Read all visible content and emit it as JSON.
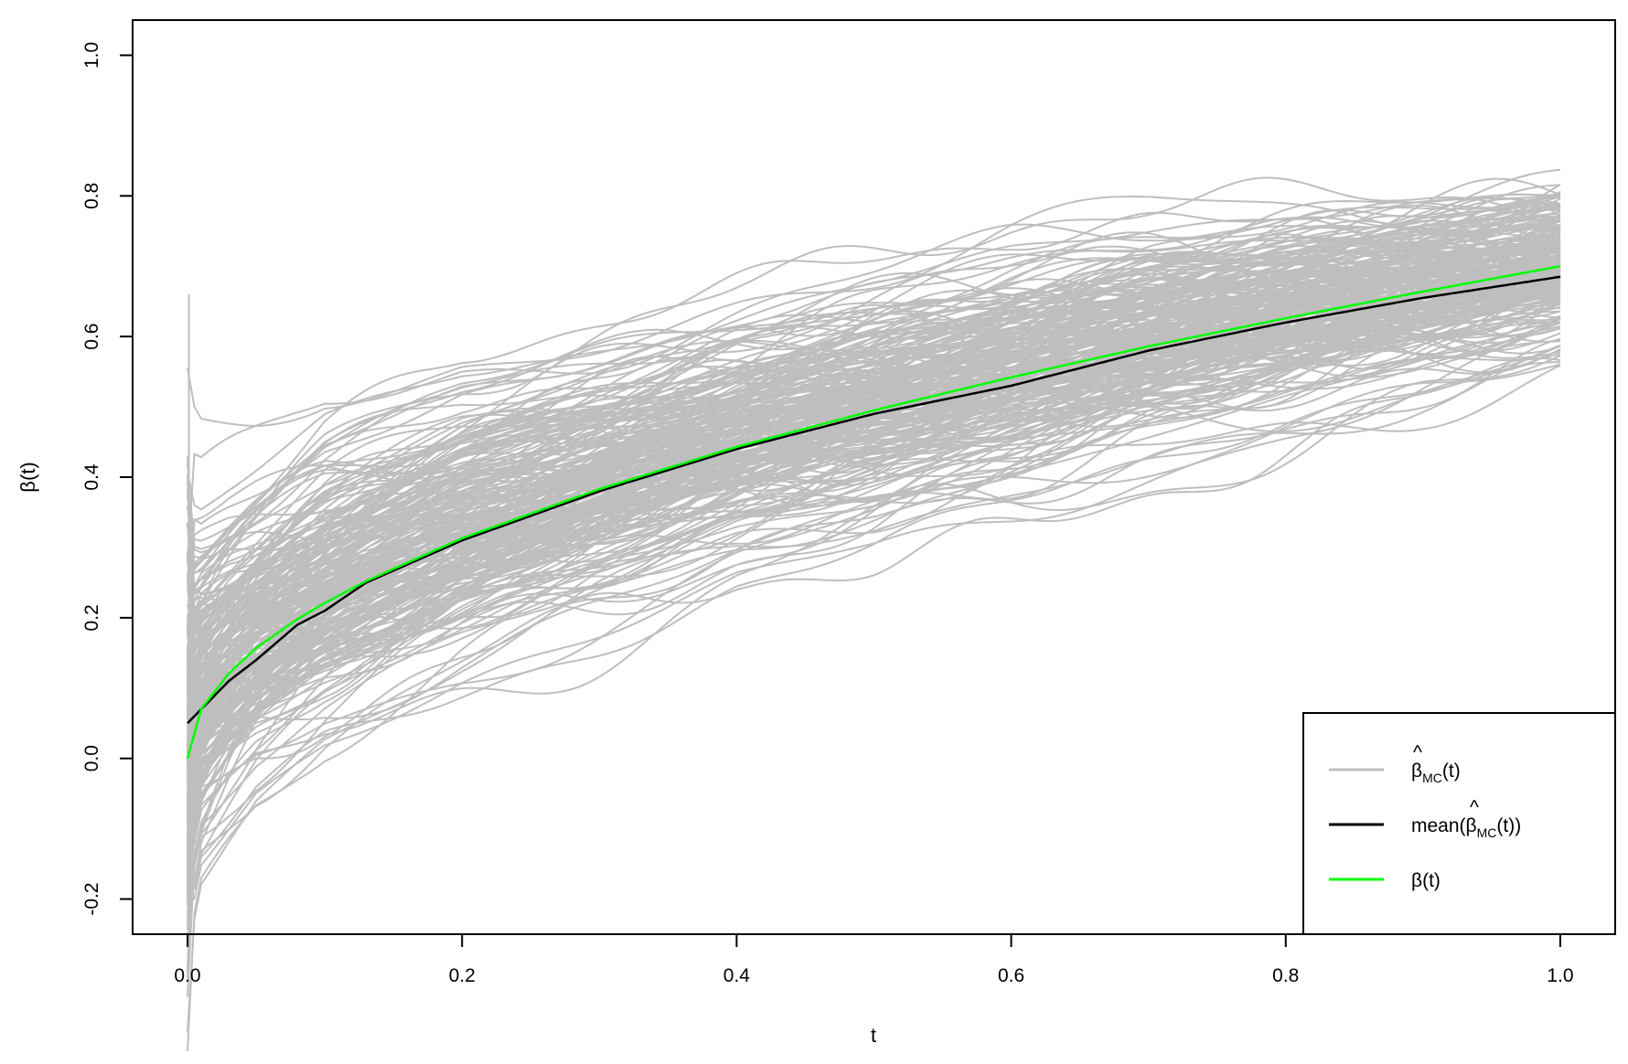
{
  "chart_data": {
    "type": "line",
    "xlabel": "t",
    "ylabel": "β(t)",
    "xlim": [
      -0.04,
      1.04
    ],
    "ylim": [
      -0.25,
      1.05
    ],
    "x_ticks": [
      0.0,
      0.2,
      0.4,
      0.6,
      0.8,
      1.0
    ],
    "x_tick_labels": [
      "0.0",
      "0.2",
      "0.4",
      "0.6",
      "0.8",
      "1.0"
    ],
    "y_ticks": [
      -0.2,
      0.0,
      0.2,
      0.4,
      0.6,
      0.8,
      1.0
    ],
    "y_tick_labels": [
      "-0.2",
      "0.0",
      "0.2",
      "0.4",
      "0.6",
      "0.8",
      "1.0"
    ],
    "grid": false,
    "legend_position": "bottom-right",
    "legend": [
      {
        "base": "β",
        "hat": "^",
        "sub": "MC",
        "suffix": "(t)",
        "prefix": "",
        "color": "#bebebe"
      },
      {
        "base": "β",
        "hat": "^",
        "sub": "MC",
        "suffix": "(t))",
        "prefix": "mean(",
        "color": "#000000"
      },
      {
        "base": "β(t)",
        "hat": "",
        "sub": "",
        "suffix": "",
        "prefix": "",
        "color": "#00ff00"
      }
    ],
    "series": [
      {
        "color": "#bebebe",
        "x": [
          0.0,
          0.01,
          0.05,
          0.1,
          0.2,
          0.3,
          0.4,
          0.5,
          0.6,
          0.7,
          0.8,
          0.9,
          1.0
        ],
        "band_upper": [
          0.38,
          0.36,
          0.42,
          0.5,
          0.58,
          0.62,
          0.66,
          0.7,
          0.74,
          0.77,
          0.79,
          0.81,
          0.83
        ],
        "band_lower": [
          -0.25,
          -0.15,
          -0.05,
          0.02,
          0.1,
          0.17,
          0.24,
          0.28,
          0.34,
          0.4,
          0.46,
          0.51,
          0.55
        ],
        "spike_max": 0.66
      },
      {
        "color": "#000000",
        "x": [
          0.0,
          0.01,
          0.03,
          0.05,
          0.08,
          0.1,
          0.13,
          0.2,
          0.3,
          0.4,
          0.5,
          0.6,
          0.7,
          0.8,
          0.9,
          1.0
        ],
        "values": [
          0.05,
          0.07,
          0.11,
          0.14,
          0.19,
          0.21,
          0.25,
          0.31,
          0.38,
          0.44,
          0.49,
          0.53,
          0.58,
          0.62,
          0.655,
          0.685
        ]
      },
      {
        "color": "#00ff00",
        "x": [
          0.0,
          0.01,
          0.03,
          0.05,
          0.08,
          0.1,
          0.13,
          0.2,
          0.3,
          0.4,
          0.5,
          0.6,
          0.7,
          0.8,
          0.9,
          1.0
        ],
        "values": [
          0.0,
          0.07,
          0.121,
          0.157,
          0.198,
          0.221,
          0.252,
          0.313,
          0.383,
          0.443,
          0.495,
          0.542,
          0.586,
          0.626,
          0.664,
          0.7
        ]
      }
    ]
  }
}
